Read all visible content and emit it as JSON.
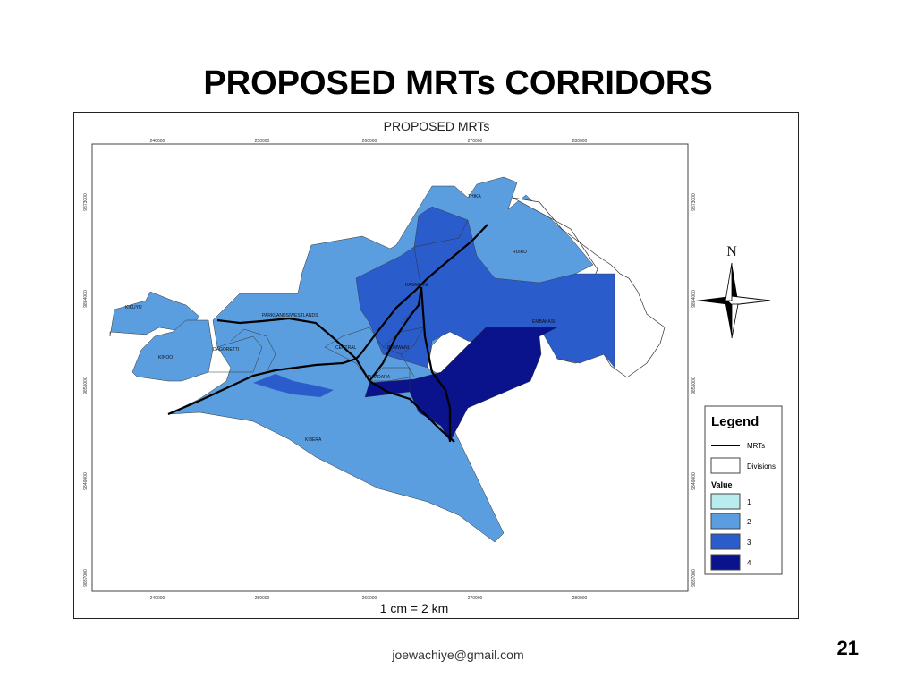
{
  "slide": {
    "title": "PROPOSED MRTs CORRIDORS",
    "footer_email": "joewachiye@gmail.com",
    "page_number": "21"
  },
  "map": {
    "title": "PROPOSED MRTs",
    "scale": "1 cm = 2 km",
    "x_ticks": [
      "240000",
      "250000",
      "260000",
      "270000",
      "280000"
    ],
    "y_ticks": [
      "9873000",
      "9864000",
      "9855000",
      "9846000",
      "9837000"
    ],
    "divisions": [
      "THIKA",
      "RUIRU",
      "KASARANI",
      "EMBAKASI",
      "PARKLANDS/WESTLANDS",
      "KIKUYU",
      "KINOO",
      "DAGORETTI",
      "CENTRAL",
      "PUMWANI",
      "MAKADARA",
      "KIBERA"
    ],
    "north_label": "N",
    "legend": {
      "title": "Legend",
      "mrts_label": "MRTs",
      "divisions_label": "Divisions",
      "value_title": "Value",
      "values": [
        {
          "label": "1",
          "color": "#b9ecef"
        },
        {
          "label": "2",
          "color": "#5a9ee0"
        },
        {
          "label": "3",
          "color": "#2a5ccc"
        },
        {
          "label": "4",
          "color": "#0a128c"
        }
      ]
    }
  }
}
